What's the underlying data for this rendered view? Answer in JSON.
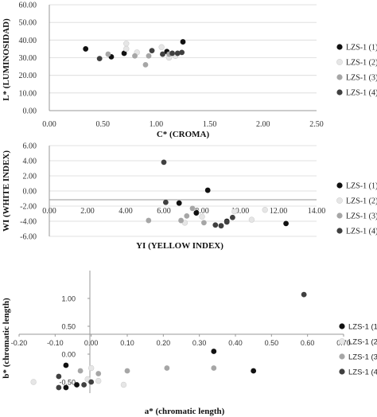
{
  "colors": {
    "series1": "#111111",
    "series2": "#e6e6e6",
    "series3": "#a6a6a6",
    "series4": "#404040",
    "axis": "#999999",
    "grid": "#d9d9d9"
  },
  "chart_data": [
    {
      "type": "scatter",
      "title": "",
      "xlabel": "C* (CROMA)",
      "ylabel": "L* (LUMINOSIDAD)",
      "xlim": [
        0,
        2.5
      ],
      "ylim": [
        0,
        60
      ],
      "grid": true,
      "legend": "right",
      "xticks": [
        "0.00",
        "0.50",
        "1.00",
        "1.50",
        "2.00",
        "2.50"
      ],
      "yticks": [
        "0.00",
        "10.00",
        "20.00",
        "30.00",
        "40.00",
        "50.00",
        "60.00"
      ],
      "series": [
        {
          "name": "LZS-1 (1)",
          "points": [
            [
              0.34,
              35
            ],
            [
              0.58,
              30.5
            ],
            [
              0.7,
              32.5
            ],
            [
              1.1,
              33.5
            ],
            [
              1.25,
              39
            ]
          ]
        },
        {
          "name": "LZS-1 (2)",
          "points": [
            [
              0.72,
              38
            ],
            [
              0.72,
              35
            ],
            [
              0.82,
              33
            ],
            [
              1.05,
              36
            ],
            [
              1.12,
              30
            ],
            [
              1.18,
              31
            ]
          ]
        },
        {
          "name": "LZS-1 (3)",
          "points": [
            [
              0.55,
              32
            ],
            [
              0.8,
              31
            ],
            [
              0.9,
              26
            ],
            [
              0.93,
              31
            ],
            [
              1.12,
              32
            ]
          ]
        },
        {
          "name": "LZS-1 (4)",
          "points": [
            [
              0.47,
              29.5
            ],
            [
              0.96,
              34
            ],
            [
              1.06,
              32
            ],
            [
              1.15,
              32.5
            ],
            [
              1.2,
              32.5
            ],
            [
              1.24,
              33
            ]
          ]
        }
      ]
    },
    {
      "type": "scatter",
      "title": "",
      "xlabel": "YI (YELLOW INDEX)",
      "ylabel": "WI (WHITE INDEX)",
      "xlim": [
        0,
        14
      ],
      "ylim": [
        -6,
        6
      ],
      "grid": true,
      "legend": "right",
      "xticks": [
        "0.00",
        "2.00",
        "4.00",
        "6.00",
        "8.00",
        "10.00",
        "12.00",
        "14.00"
      ],
      "yticks": [
        "-6.00",
        "-4.00",
        "-2.00",
        "0.00",
        "2.00",
        "4.00",
        "6.00"
      ],
      "series": [
        {
          "name": "LZS-1 (1)",
          "points": [
            [
              6.8,
              -1.6
            ],
            [
              7.7,
              -2.9
            ],
            [
              8.3,
              0.1
            ],
            [
              9.3,
              -4.0
            ],
            [
              12.4,
              -4.3
            ]
          ]
        },
        {
          "name": "LZS-1 (2)",
          "points": [
            [
              7.1,
              -4.2
            ],
            [
              8.0,
              -3.4
            ],
            [
              9.7,
              -2.7
            ],
            [
              10.6,
              -3.8
            ],
            [
              11.3,
              -2.5
            ]
          ]
        },
        {
          "name": "LZS-1 (3)",
          "points": [
            [
              5.2,
              -3.9
            ],
            [
              6.9,
              -3.9
            ],
            [
              7.2,
              -3.3
            ],
            [
              7.5,
              -2.3
            ],
            [
              8.1,
              -4.2
            ]
          ]
        },
        {
          "name": "LZS-1 (4)",
          "points": [
            [
              6.0,
              3.8
            ],
            [
              6.1,
              -1.5
            ],
            [
              8.7,
              -4.5
            ],
            [
              9.0,
              -4.6
            ],
            [
              9.3,
              -4.1
            ],
            [
              9.6,
              -3.5
            ]
          ]
        }
      ]
    },
    {
      "type": "scatter",
      "title": "",
      "xlabel": "a* (chromatic length)",
      "ylabel": "b* (chromatic length)",
      "xlim": [
        -0.2,
        0.7
      ],
      "ylim": [
        -0.7,
        1.5
      ],
      "grid": false,
      "legend": "right",
      "xticks": [
        "-0.20",
        "-0.10",
        "0.00",
        "0.10",
        "0.20",
        "0.30",
        "0.40",
        "0.50",
        "0.60",
        "0.70"
      ],
      "yticks": [
        "-0.50",
        "0.00",
        "0.50",
        "1.00"
      ],
      "series": [
        {
          "name": "LZS-1 (1)",
          "points": [
            [
              -0.07,
              -0.6
            ],
            [
              -0.04,
              -0.55
            ],
            [
              -0.07,
              -0.2
            ],
            [
              0.34,
              0.05
            ],
            [
              0.45,
              -0.3
            ]
          ]
        },
        {
          "name": "LZS-1 (2)",
          "points": [
            [
              -0.16,
              -0.5
            ],
            [
              -0.01,
              -0.45
            ],
            [
              0.0,
              -0.25
            ],
            [
              0.02,
              -0.48
            ],
            [
              0.09,
              -0.55
            ]
          ]
        },
        {
          "name": "LZS-1 (3)",
          "points": [
            [
              -0.03,
              -0.3
            ],
            [
              0.02,
              -0.35
            ],
            [
              0.1,
              -0.3
            ],
            [
              0.21,
              -0.25
            ],
            [
              0.34,
              -0.25
            ]
          ]
        },
        {
          "name": "LZS-1 (4)",
          "points": [
            [
              -0.09,
              -0.6
            ],
            [
              -0.02,
              -0.55
            ],
            [
              -0.09,
              -0.4
            ],
            [
              0.0,
              -0.5
            ],
            [
              0.59,
              1.07
            ]
          ]
        }
      ]
    }
  ]
}
